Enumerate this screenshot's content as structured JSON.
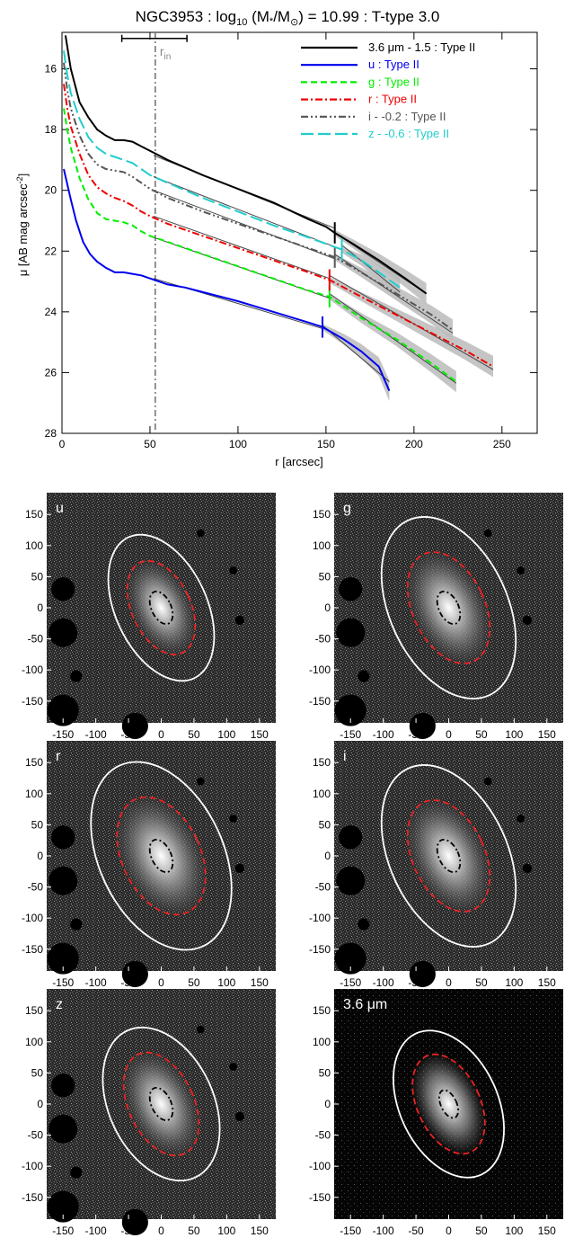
{
  "chart_data": [
    {
      "type": "line",
      "title_prefix": "NGC3953 : log",
      "title_sub": "10",
      "title_mass": " (M",
      "title_star": "*",
      "title_slash": "/M",
      "title_sun": "⊙",
      "title_suffix": ") = 10.99 : T-type 3.0",
      "xlabel": "r [arcsec]",
      "ylabel_main": "μ [AB mag arcsec",
      "ylabel_exp": "-2",
      "ylabel_close": "]",
      "xlim": [
        0,
        270
      ],
      "ylim": [
        28,
        14.8
      ],
      "yaxis_inverted": true,
      "xticks": [
        0,
        50,
        100,
        150,
        200,
        250
      ],
      "yticks": [
        16,
        18,
        20,
        22,
        24,
        26,
        28
      ],
      "grid": false,
      "legend_position": "top-right",
      "r_in": {
        "label_main": "r",
        "label_sub": "in",
        "value": 53,
        "bar": [
          34,
          71
        ],
        "bar_y": 15.0
      },
      "series": [
        {
          "name": "3.6 μm - 1.5 : Type II",
          "color": "#000000",
          "dash": "solid",
          "x": [
            2,
            5,
            10,
            15,
            20,
            25,
            30,
            35,
            40,
            45,
            50,
            60,
            80,
            100,
            120,
            140,
            150,
            155,
            165,
            180,
            195,
            207
          ],
          "y": [
            14.9,
            16.0,
            17.1,
            17.6,
            18.0,
            18.2,
            18.35,
            18.35,
            18.4,
            18.55,
            18.7,
            19.0,
            19.5,
            19.95,
            20.4,
            20.95,
            21.2,
            21.4,
            21.75,
            22.3,
            22.9,
            23.4
          ],
          "fit": [
            [
              52,
              18.85
            ],
            [
              155,
              21.25
            ],
            [
              155,
              21.4
            ],
            [
              207,
              23.4
            ]
          ],
          "break": 155
        },
        {
          "name": "u : Type II",
          "color": "#0000ee",
          "dash": "solid",
          "x": [
            1,
            3,
            5,
            8,
            12,
            16,
            20,
            25,
            30,
            35,
            40,
            45,
            50,
            55,
            60,
            70,
            80,
            100,
            120,
            140,
            148,
            160,
            170,
            180,
            186
          ],
          "y": [
            19.3,
            19.8,
            20.3,
            21.0,
            21.7,
            22.1,
            22.35,
            22.55,
            22.7,
            22.7,
            22.75,
            22.8,
            22.9,
            23.0,
            23.1,
            23.2,
            23.35,
            23.65,
            24.0,
            24.35,
            24.5,
            24.9,
            25.3,
            25.8,
            26.6
          ],
          "fit": [
            [
              52,
              22.9
            ],
            [
              148,
              24.55
            ],
            [
              148,
              24.45
            ],
            [
              186,
              26.3
            ]
          ],
          "break": 148
        },
        {
          "name": "g : Type II",
          "color": "#00ee00",
          "dash": "dashed",
          "x": [
            1,
            3,
            5,
            10,
            15,
            20,
            25,
            30,
            35,
            40,
            45,
            50,
            60,
            80,
            100,
            120,
            140,
            152,
            170,
            190,
            210,
            224
          ],
          "y": [
            17.3,
            18.0,
            18.6,
            19.6,
            20.3,
            20.75,
            20.95,
            21.0,
            21.05,
            21.15,
            21.35,
            21.5,
            21.7,
            22.1,
            22.5,
            22.9,
            23.3,
            23.5,
            24.2,
            24.9,
            25.7,
            26.3
          ],
          "fit": [
            [
              52,
              21.55
            ],
            [
              152,
              23.55
            ],
            [
              152,
              23.4
            ],
            [
              224,
              26.35
            ]
          ],
          "break": 152
        },
        {
          "name": "r : Type II",
          "color": "#ee0000",
          "dash": "dashdot",
          "x": [
            1,
            3,
            5,
            10,
            15,
            20,
            25,
            30,
            35,
            40,
            45,
            50,
            60,
            80,
            100,
            120,
            140,
            152,
            170,
            190,
            210,
            230,
            245
          ],
          "y": [
            16.5,
            17.3,
            17.9,
            18.8,
            19.5,
            19.9,
            20.1,
            20.25,
            20.35,
            20.5,
            20.7,
            20.85,
            21.1,
            21.5,
            21.9,
            22.3,
            22.7,
            22.95,
            23.5,
            24.1,
            24.7,
            25.3,
            25.8
          ],
          "fit": [
            [
              52,
              20.85
            ],
            [
              152,
              22.9
            ],
            [
              152,
              22.8
            ],
            [
              245,
              25.9
            ]
          ],
          "break": 152
        },
        {
          "name": "i - -0.2 : Type II",
          "color": "#555555",
          "dash": "dashdotdot",
          "x": [
            1,
            3,
            5,
            10,
            15,
            20,
            25,
            30,
            35,
            40,
            45,
            50,
            60,
            80,
            100,
            120,
            140,
            155,
            170,
            190,
            210,
            222
          ],
          "y": [
            15.8,
            16.7,
            17.3,
            18.2,
            18.8,
            19.15,
            19.3,
            19.35,
            19.4,
            19.55,
            19.75,
            19.95,
            20.25,
            20.7,
            21.1,
            21.5,
            21.9,
            22.2,
            22.7,
            23.4,
            24.1,
            24.6
          ],
          "fit": [
            [
              52,
              20.0
            ],
            [
              155,
              22.25
            ],
            [
              155,
              22.1
            ],
            [
              222,
              24.7
            ]
          ],
          "break": 155
        },
        {
          "name": "z - -0.6 : Type II",
          "color": "#22cccc",
          "dash": "longdash",
          "x": [
            1,
            3,
            5,
            10,
            15,
            20,
            25,
            30,
            35,
            40,
            45,
            50,
            60,
            80,
            100,
            120,
            140,
            159,
            170,
            180,
            192
          ],
          "y": [
            15.4,
            16.2,
            16.8,
            17.65,
            18.25,
            18.6,
            18.8,
            18.9,
            19.0,
            19.1,
            19.3,
            19.5,
            19.75,
            20.25,
            20.7,
            21.15,
            21.55,
            21.95,
            22.3,
            22.7,
            23.2
          ],
          "fit": [
            [
              52,
              19.55
            ],
            [
              159,
              21.95
            ],
            [
              159,
              21.8
            ],
            [
              192,
              23.35
            ]
          ],
          "break": 159
        }
      ]
    },
    {
      "type": "image_grid",
      "xticks": [
        -150,
        -100,
        -50,
        0,
        50,
        100,
        150
      ],
      "yticks": [
        150,
        100,
        50,
        0,
        -50,
        -100,
        -150
      ],
      "xlim": [
        -175,
        175
      ],
      "ylim": [
        -185,
        185
      ],
      "panels": [
        {
          "label": "u",
          "outer": [
            70,
            125,
            25
          ],
          "inner": [
            45,
            80,
            25
          ],
          "core": [
            15,
            28,
            25
          ]
        },
        {
          "label": "g",
          "outer": [
            90,
            155,
            25
          ],
          "inner": [
            55,
            95,
            25
          ],
          "core": [
            15,
            28,
            25
          ]
        },
        {
          "label": "r",
          "outer": [
            95,
            160,
            25
          ],
          "inner": [
            60,
            100,
            25
          ],
          "core": [
            15,
            28,
            25
          ]
        },
        {
          "label": "i",
          "outer": [
            90,
            155,
            25
          ],
          "inner": [
            55,
            95,
            25
          ],
          "core": [
            15,
            28,
            25
          ]
        },
        {
          "label": "z",
          "outer": [
            80,
            130,
            25
          ],
          "inner": [
            50,
            88,
            25
          ],
          "core": [
            15,
            28,
            25
          ]
        },
        {
          "label": "3.6 μm",
          "outer": [
            75,
            125,
            25
          ],
          "inner": [
            48,
            85,
            25
          ],
          "core": [
            12,
            24,
            25
          ]
        }
      ]
    }
  ]
}
